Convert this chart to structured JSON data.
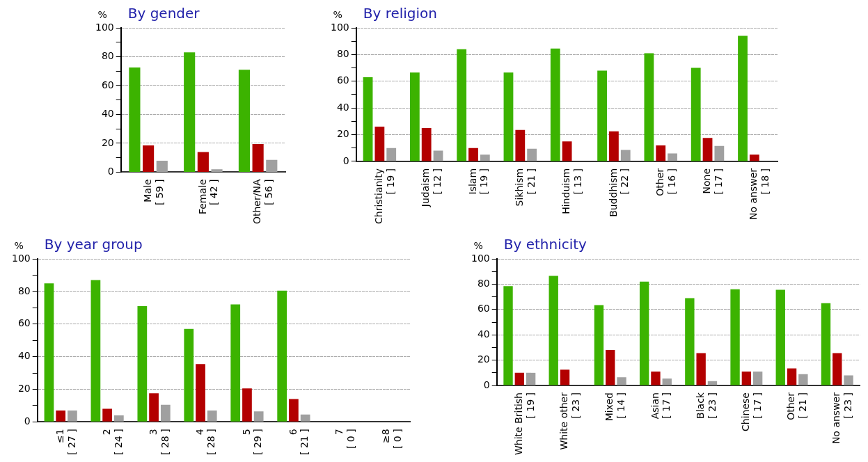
{
  "chart_data": [
    {
      "type": "bar",
      "title": "By gender",
      "ylabel": "%",
      "categories": [
        "Male\n[ 59 ]",
        "Female\n[ 42 ]",
        "Other/NA\n[ 56 ]"
      ],
      "series": [
        {
          "color": "#3cb300",
          "values": [
            72.5,
            83,
            71
          ]
        },
        {
          "color": "#b30000",
          "values": [
            18.5,
            14,
            19.5
          ]
        },
        {
          "color": "#a0a0a0",
          "values": [
            8,
            2,
            8.5
          ]
        }
      ],
      "ylim": [
        0,
        100
      ],
      "yticks": [
        0,
        {
          "value": 10,
          "label": null
        },
        20,
        {
          "value": 30,
          "label": null
        },
        40,
        {
          "value": 50,
          "label": null
        },
        60,
        {
          "value": 70,
          "label": null
        },
        80,
        {
          "value": 90,
          "label": null
        },
        100
      ],
      "grid": "y"
    },
    {
      "type": "bar",
      "title": "By religion",
      "ylabel": "%",
      "categories": [
        "Christianity\n[ 19 ]",
        "Judaism\n[ 12 ]",
        "Islam\n[ 19 ]",
        "Sikhism\n[ 21 ]",
        "Hinduism\n[ 13 ]",
        "Buddhism\n[ 22 ]",
        "Other\n[ 16 ]",
        "None\n[ 17 ]",
        "No answer\n[ 18 ]"
      ],
      "series": [
        {
          "color": "#3cb300",
          "values": [
            63,
            66.5,
            84,
            66.5,
            84.5,
            68,
            81,
            70,
            94
          ]
        },
        {
          "color": "#b30000",
          "values": [
            26,
            25,
            10,
            23.5,
            15,
            22.5,
            12,
            17.5,
            5
          ]
        },
        {
          "color": "#a0a0a0",
          "values": [
            10,
            8,
            5,
            9.5,
            0,
            8.5,
            6,
            11.5,
            0
          ]
        }
      ],
      "ylim": [
        0,
        100
      ],
      "yticks": [
        0,
        {
          "value": 10,
          "label": null
        },
        20,
        {
          "value": 30,
          "label": null
        },
        40,
        {
          "value": 50,
          "label": null
        },
        60,
        {
          "value": 70,
          "label": null
        },
        80,
        {
          "value": 90,
          "label": null
        },
        100
      ],
      "grid": "y"
    },
    {
      "type": "bar",
      "title": "By year group",
      "ylabel": "%",
      "categories": [
        "≤1\n[ 27 ]",
        "2\n[ 24 ]",
        "3\n[ 28 ]",
        "4\n[ 28 ]",
        "5\n[ 29 ]",
        "6\n[ 21 ]",
        "7\n[ 0 ]",
        "≥8\n[ 0 ]"
      ],
      "series": [
        {
          "color": "#3cb300",
          "values": [
            85,
            87,
            71,
            57,
            72,
            80.5,
            null,
            null
          ]
        },
        {
          "color": "#b30000",
          "values": [
            7,
            8,
            17.5,
            35.5,
            20.5,
            14,
            null,
            null
          ]
        },
        {
          "color": "#a0a0a0",
          "values": [
            7,
            4,
            10.5,
            7,
            6.5,
            4.5,
            null,
            null
          ]
        }
      ],
      "ylim": [
        0,
        100
      ],
      "yticks": [
        0,
        {
          "value": 10,
          "label": null
        },
        20,
        {
          "value": 30,
          "label": null
        },
        40,
        {
          "value": 50,
          "label": null
        },
        60,
        {
          "value": 70,
          "label": null
        },
        80,
        {
          "value": 90,
          "label": null
        },
        100
      ],
      "grid": "y"
    },
    {
      "type": "bar",
      "title": "By ethnicity",
      "ylabel": "%",
      "categories": [
        "White British\n[ 19 ]",
        "White other\n[ 23 ]",
        "Mixed\n[ 14 ]",
        "Asian\n[ 17 ]",
        "Black\n[ 23 ]",
        "Chinese\n[ 17 ]",
        "Other\n[ 21 ]",
        "No answer\n[ 23 ]"
      ],
      "series": [
        {
          "color": "#3cb300",
          "values": [
            78.5,
            86.5,
            63.5,
            82,
            69,
            76,
            75.5,
            65
          ]
        },
        {
          "color": "#b30000",
          "values": [
            10,
            12.5,
            28,
            11,
            25.5,
            11,
            13.5,
            25.5
          ]
        },
        {
          "color": "#a0a0a0",
          "values": [
            10,
            0,
            6.5,
            5.5,
            3.5,
            11,
            9,
            8
          ]
        }
      ],
      "ylim": [
        0,
        100
      ],
      "yticks": [
        0,
        {
          "value": 10,
          "label": null
        },
        20,
        {
          "value": 30,
          "label": null
        },
        40,
        {
          "value": 50,
          "label": null
        },
        60,
        {
          "value": 70,
          "label": null
        },
        80,
        {
          "value": 90,
          "label": null
        },
        100
      ],
      "grid": "y"
    }
  ]
}
